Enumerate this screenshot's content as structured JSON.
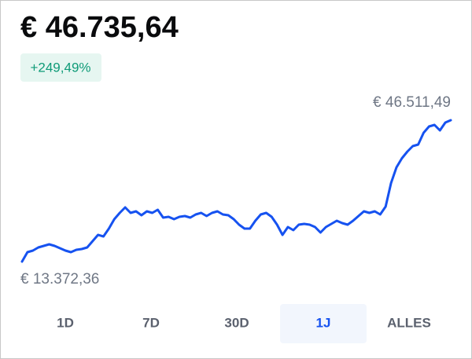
{
  "header": {
    "price": "€ 46.735,64",
    "change": "+249,49%"
  },
  "chart_data": {
    "type": "line",
    "color": "#1652f0",
    "max_label": "€ 46.511,49",
    "min_label": "€ 13.372,36",
    "values": [
      13372.36,
      15580,
      15950,
      16690,
      17050,
      17420,
      17050,
      16500,
      15950,
      15580,
      16130,
      16320,
      16690,
      18160,
      19630,
      19260,
      21100,
      23310,
      24790,
      26070,
      24790,
      25160,
      24230,
      25160,
      24790,
      25520,
      23680,
      23870,
      23310,
      23870,
      24050,
      23680,
      24420,
      24790,
      24050,
      24790,
      25160,
      24420,
      24230,
      23310,
      22020,
      21100,
      21100,
      22950,
      24420,
      24790,
      23870,
      22020,
      19630,
      21470,
      20740,
      22020,
      22210,
      22020,
      21470,
      20180,
      21470,
      22210,
      22950,
      22390,
      22020,
      22950,
      24050,
      25160,
      24790,
      25160,
      24420,
      26260,
      31780,
      35460,
      37580,
      39150,
      40440,
      40800,
      43560,
      45040,
      45410,
      44120,
      45960,
      46511.49
    ]
  },
  "tabs": {
    "items": [
      "1D",
      "7D",
      "30D",
      "1J",
      "ALLES"
    ],
    "selected": 3
  }
}
